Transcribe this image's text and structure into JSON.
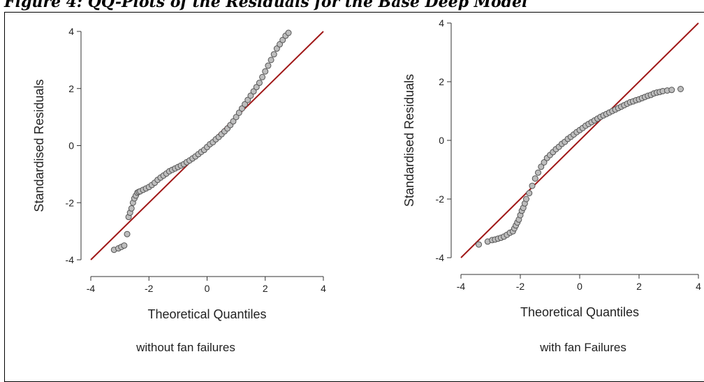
{
  "header": {
    "title": "Figure 4: QQ-Plots of the Residuals for the Base Deep Model"
  },
  "captions": {
    "left": "without fan failures",
    "right": "with fan Failures"
  },
  "colors": {
    "reference_line": "#a01818",
    "point_fill": "#bdbdbd",
    "point_stroke": "#555555",
    "axis": "#333333"
  },
  "chart_data": [
    {
      "type": "scatter",
      "title": "",
      "xlabel": "Theoretical Quantiles",
      "ylabel": "Standardised Residuals",
      "xlim": [
        -4,
        4
      ],
      "ylim": [
        -4,
        4
      ],
      "xticks": [
        -4,
        -2,
        0,
        2,
        4
      ],
      "yticks": [
        -4,
        -2,
        0,
        2,
        4
      ],
      "reference_line": {
        "x": [
          -4,
          4
        ],
        "y": [
          -4,
          4
        ]
      },
      "series": [
        {
          "x": [
            -3.2,
            -3.05,
            -2.95,
            -2.85,
            -2.75,
            -2.7,
            -2.65,
            -2.6,
            -2.55,
            -2.5,
            -2.45,
            -2.4,
            -2.35,
            -2.3,
            -2.2,
            -2.1,
            -2.0,
            -1.9,
            -1.8,
            -1.7,
            -1.6,
            -1.5,
            -1.4,
            -1.3,
            -1.2,
            -1.1,
            -1.0,
            -0.9,
            -0.8,
            -0.7,
            -0.6,
            -0.5,
            -0.4,
            -0.3,
            -0.2,
            -0.1,
            0.0,
            0.1,
            0.2,
            0.3,
            0.4,
            0.5,
            0.6,
            0.7,
            0.8,
            0.9,
            1.0,
            1.1,
            1.2,
            1.3,
            1.4,
            1.5,
            1.6,
            1.7,
            1.8,
            1.9,
            2.0,
            2.1,
            2.2,
            2.3,
            2.4,
            2.5,
            2.6,
            2.7,
            2.8
          ],
          "y": [
            -3.65,
            -3.6,
            -3.55,
            -3.5,
            -3.1,
            -2.5,
            -2.35,
            -2.2,
            -2.0,
            -1.85,
            -1.75,
            -1.65,
            -1.62,
            -1.6,
            -1.55,
            -1.5,
            -1.45,
            -1.38,
            -1.3,
            -1.2,
            -1.12,
            -1.05,
            -0.98,
            -0.9,
            -0.85,
            -0.8,
            -0.75,
            -0.7,
            -0.65,
            -0.58,
            -0.52,
            -0.45,
            -0.38,
            -0.3,
            -0.22,
            -0.15,
            -0.05,
            0.05,
            0.12,
            0.22,
            0.3,
            0.4,
            0.5,
            0.6,
            0.72,
            0.85,
            1.0,
            1.15,
            1.3,
            1.45,
            1.6,
            1.75,
            1.9,
            2.05,
            2.2,
            2.4,
            2.6,
            2.8,
            3.0,
            3.2,
            3.4,
            3.55,
            3.7,
            3.85,
            3.95
          ]
        }
      ]
    },
    {
      "type": "scatter",
      "title": "",
      "xlabel": "Theoretical Quantiles",
      "ylabel": "Standardised Residuals",
      "xlim": [
        -4,
        4
      ],
      "ylim": [
        -4,
        4
      ],
      "xticks": [
        -4,
        -2,
        0,
        2,
        4
      ],
      "yticks": [
        -4,
        -2,
        0,
        2,
        4
      ],
      "reference_line": {
        "x": [
          -4,
          4
        ],
        "y": [
          -4,
          4
        ]
      },
      "series": [
        {
          "x": [
            -3.4,
            -3.1,
            -2.95,
            -2.85,
            -2.75,
            -2.65,
            -2.55,
            -2.45,
            -2.35,
            -2.25,
            -2.2,
            -2.15,
            -2.1,
            -2.05,
            -2.0,
            -1.95,
            -1.9,
            -1.85,
            -1.8,
            -1.7,
            -1.6,
            -1.5,
            -1.4,
            -1.3,
            -1.2,
            -1.1,
            -1.0,
            -0.9,
            -0.8,
            -0.7,
            -0.6,
            -0.5,
            -0.4,
            -0.3,
            -0.2,
            -0.1,
            0.0,
            0.1,
            0.2,
            0.3,
            0.4,
            0.5,
            0.6,
            0.7,
            0.8,
            0.9,
            1.0,
            1.1,
            1.2,
            1.3,
            1.4,
            1.5,
            1.6,
            1.7,
            1.8,
            1.9,
            2.0,
            2.1,
            2.2,
            2.3,
            2.4,
            2.5,
            2.6,
            2.7,
            2.8,
            2.95,
            3.1,
            3.4
          ],
          "y": [
            -3.55,
            -3.45,
            -3.4,
            -3.38,
            -3.35,
            -3.32,
            -3.28,
            -3.22,
            -3.15,
            -3.1,
            -3.0,
            -2.9,
            -2.8,
            -2.7,
            -2.55,
            -2.4,
            -2.3,
            -2.15,
            -2.0,
            -1.8,
            -1.55,
            -1.3,
            -1.1,
            -0.9,
            -0.75,
            -0.6,
            -0.5,
            -0.4,
            -0.3,
            -0.22,
            -0.12,
            -0.05,
            0.05,
            0.12,
            0.2,
            0.28,
            0.35,
            0.42,
            0.5,
            0.56,
            0.62,
            0.68,
            0.74,
            0.8,
            0.85,
            0.9,
            0.95,
            1.0,
            1.05,
            1.1,
            1.15,
            1.2,
            1.25,
            1.3,
            1.33,
            1.37,
            1.4,
            1.44,
            1.48,
            1.52,
            1.55,
            1.6,
            1.63,
            1.65,
            1.68,
            1.7,
            1.72,
            1.75
          ]
        }
      ]
    }
  ]
}
